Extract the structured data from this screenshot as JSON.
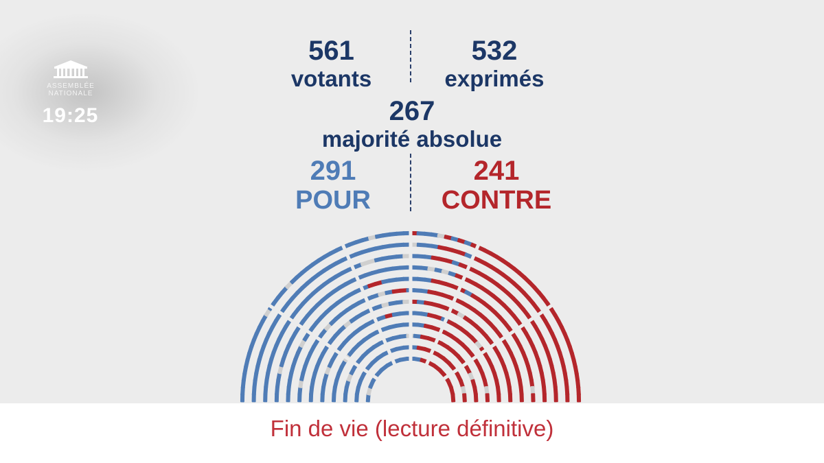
{
  "broadcast": {
    "logo_line1": "ASSEMBLÉE",
    "logo_line2": "NATIONALE",
    "time": "19:25"
  },
  "vote": {
    "votants_value": "561",
    "votants_label": "votants",
    "exprimes_value": "532",
    "exprimes_label": "exprimés",
    "majorite_value": "267",
    "majorite_label": "majorité absolue",
    "pour_value": "291",
    "pour_label": "POUR",
    "contre_value": "241",
    "contre_label": "CONTRE"
  },
  "colors": {
    "pour": "#4f7cb6",
    "contre": "#b4262b",
    "absent": "#cfcfcf",
    "text": "#1c3766",
    "title": "#c0303a"
  },
  "hemicycle": {
    "pour": 291,
    "contre": 241,
    "non_exprimes": 29
  },
  "footer": {
    "title": "Fin de vie (lecture définitive)"
  }
}
